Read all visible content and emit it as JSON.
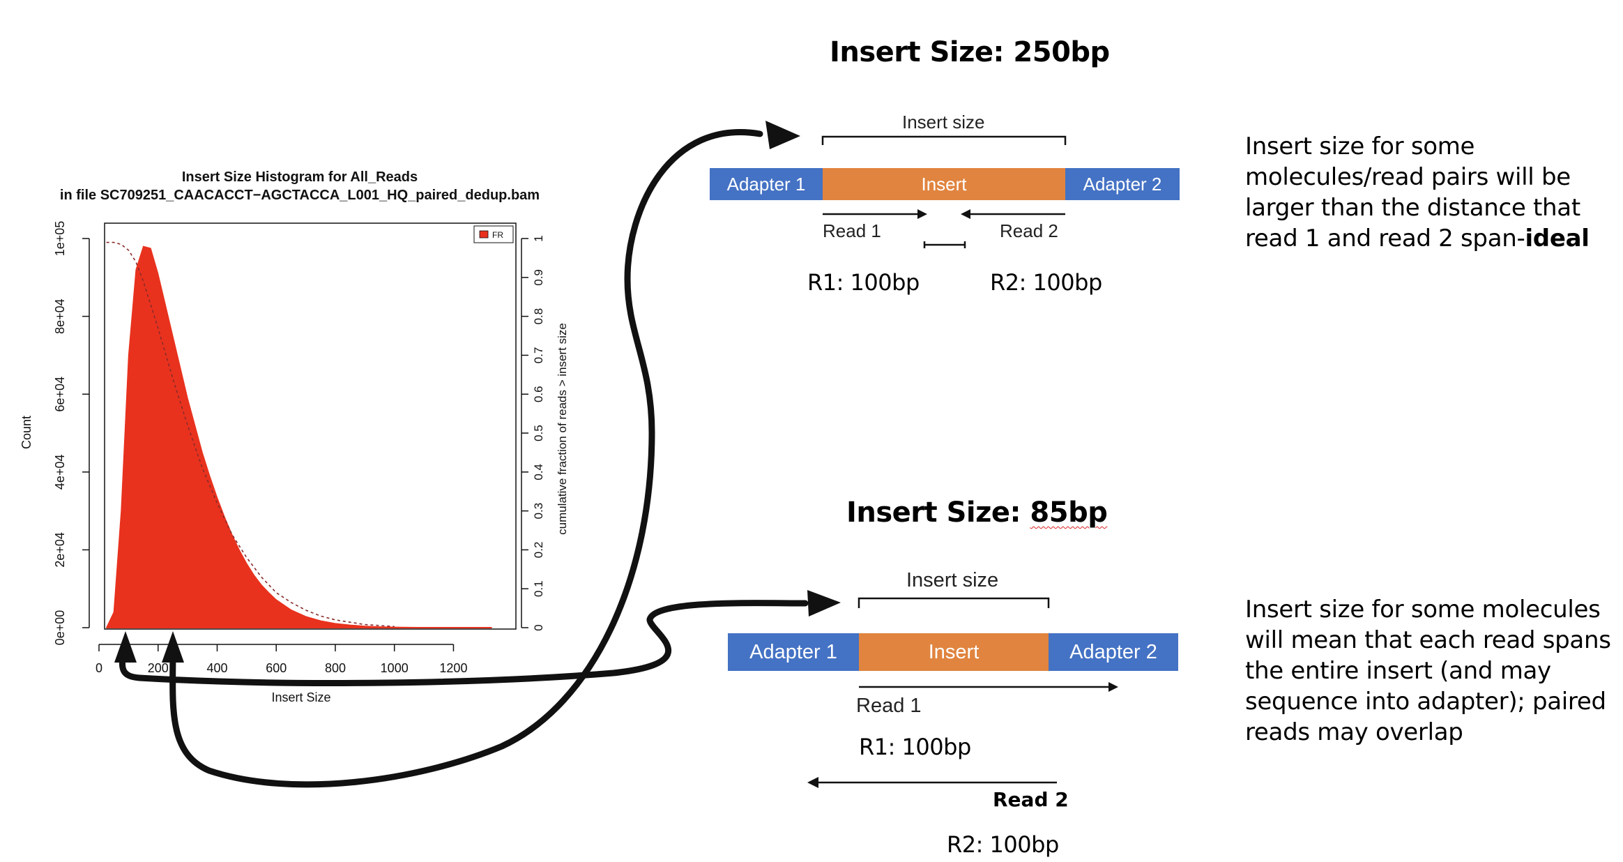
{
  "chart_data": {
    "type": "area",
    "title": "Insert Size Histogram for All_Reads",
    "subtitle": "in file SC709251_CAACACCT−AGCTACCA_L001_HQ_paired_dedup.bam",
    "xlabel": "Insert Size",
    "ylabel": "Count",
    "y2label": "cumulative fraction of reads > insert size",
    "xlim": [
      0,
      1350
    ],
    "ylim": [
      0,
      100000
    ],
    "y2lim": [
      0,
      1
    ],
    "x_ticks": [
      "0",
      "200",
      "400",
      "600",
      "800",
      "1000",
      "1200"
    ],
    "y_ticks": [
      "0e+00",
      "2e+04",
      "4e+04",
      "6e+04",
      "8e+04",
      "1e+05"
    ],
    "y2_ticks": [
      "0",
      "0.1",
      "0.2",
      "0.3",
      "0.4",
      "0.5",
      "0.6",
      "0.7",
      "0.8",
      "0.9",
      "1"
    ],
    "legend": {
      "position": "top-right",
      "entries": [
        {
          "name": "FR",
          "color": "#e8321e"
        }
      ]
    },
    "series": [
      {
        "name": "FR",
        "kind": "histogram",
        "color": "#e8321e",
        "x": [
          25,
          50,
          75,
          100,
          125,
          150,
          175,
          200,
          225,
          250,
          275,
          300,
          325,
          350,
          375,
          400,
          425,
          450,
          475,
          500,
          525,
          550,
          575,
          600,
          650,
          700,
          750,
          800,
          850,
          900,
          950,
          1000,
          1100,
          1200,
          1330
        ],
        "y": [
          0,
          4000,
          30000,
          70000,
          92000,
          98000,
          97500,
          91000,
          83000,
          75000,
          67000,
          59000,
          52000,
          45000,
          39000,
          33500,
          28500,
          24000,
          20000,
          16500,
          13500,
          11000,
          9000,
          7200,
          4600,
          2900,
          1800,
          1100,
          700,
          400,
          250,
          150,
          60,
          20,
          0
        ]
      },
      {
        "name": "cumulative",
        "kind": "dashed-line",
        "color": "#8a2a2a",
        "x": [
          25,
          50,
          75,
          100,
          125,
          150,
          175,
          200,
          250,
          300,
          350,
          400,
          450,
          500,
          550,
          600,
          650,
          700,
          750,
          800,
          900,
          1000
        ],
        "y": [
          0.99,
          0.99,
          0.985,
          0.97,
          0.94,
          0.89,
          0.83,
          0.77,
          0.64,
          0.52,
          0.41,
          0.32,
          0.24,
          0.18,
          0.13,
          0.09,
          0.065,
          0.045,
          0.03,
          0.02,
          0.008,
          0.003
        ]
      }
    ]
  },
  "diagram_top": {
    "title": "Insert Size: 250bp",
    "bracket_label": "Insert size",
    "adapter1": "Adapter 1",
    "insert": "Insert",
    "adapter2": "Adapter 2",
    "read1": "Read 1",
    "read2": "Read 2",
    "r1": "R1: 100bp",
    "r2": "R2: 100bp",
    "description_pre": "Insert size for some molecules/read pairs will be larger than the distance that read 1 and read 2 span-",
    "description_bold": "ideal"
  },
  "diagram_bottom": {
    "title_prefix": "Insert Size: ",
    "title_value": "85bp",
    "bracket_label": "Insert size",
    "adapter1": "Adapter 1",
    "insert": "Insert",
    "adapter2": "Adapter 2",
    "read1": "Read 1",
    "read2": "Read 2",
    "r1": "R1: 100bp",
    "r2": "R2: 100bp",
    "description": "Insert size for some molecules will mean that each read spans the entire insert (and may sequence into adapter); paired reads may overlap"
  },
  "colors": {
    "adapter": "#4472c4",
    "insert": "#e0843f",
    "histogram": "#e8321e",
    "connector": "#111111"
  }
}
